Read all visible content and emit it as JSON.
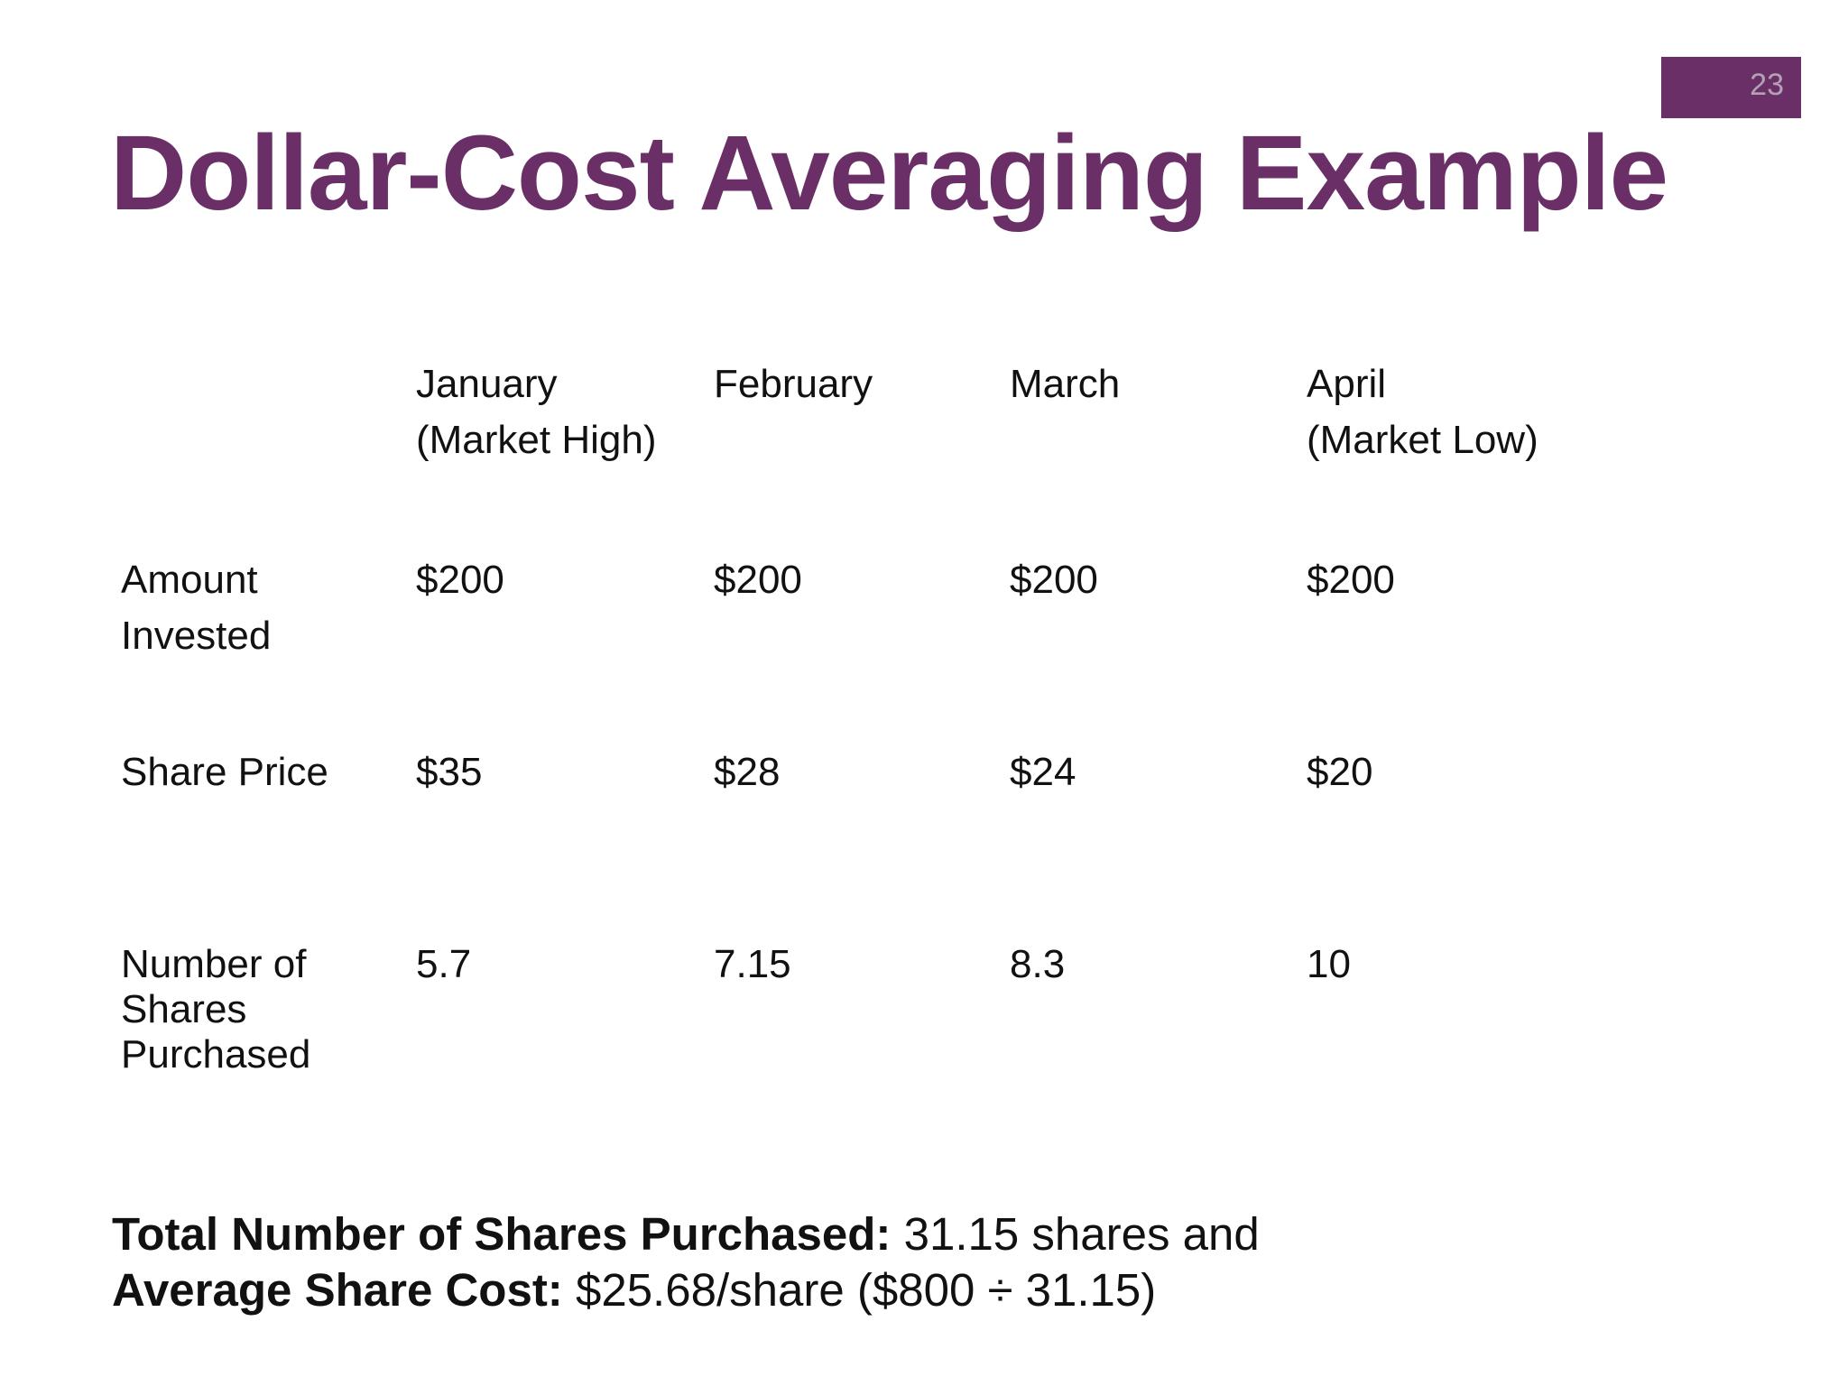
{
  "slide": {
    "number": "23",
    "title": "Dollar-Cost Averaging Example"
  },
  "table": {
    "columns": [
      {
        "label_line1": "January",
        "label_line2": "(Market High)"
      },
      {
        "label_line1": "February",
        "label_line2": ""
      },
      {
        "label_line1": "March",
        "label_line2": ""
      },
      {
        "label_line1": "April",
        "label_line2": "(Market Low)"
      }
    ],
    "rows": [
      {
        "label_lines": [
          "Amount",
          "Invested"
        ],
        "values": [
          "$200",
          "$200",
          "$200",
          "$200"
        ]
      },
      {
        "label_lines": [
          "Share Price"
        ],
        "values": [
          "$35",
          "$28",
          "$24",
          "$20"
        ]
      },
      {
        "label_lines": [
          "Number of",
          "Shares",
          "Purchased"
        ],
        "values": [
          "5.7",
          "7.15",
          "8.3",
          "10"
        ]
      }
    ]
  },
  "summary": {
    "total_label": "Total Number of Shares Purchased:",
    "total_value": " 31.15 shares and",
    "avg_label": "Average Share Cost:",
    "avg_value": " $25.68/share ($800 ÷ 31.15)"
  },
  "colors": {
    "accent": "#6b2f68",
    "text": "#111111",
    "background": "#ffffff"
  }
}
